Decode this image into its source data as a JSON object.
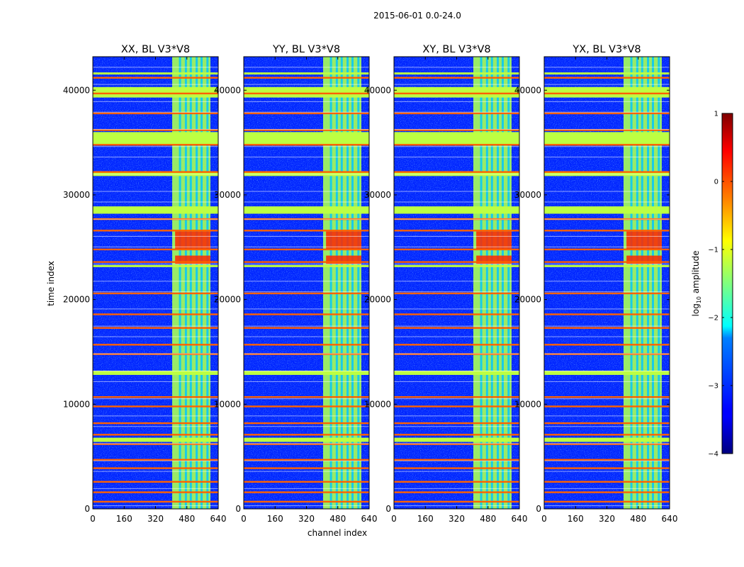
{
  "figure_title": "2015-06-01 0.0-24.0",
  "chart_data": {
    "type": "heatmap",
    "title": "2015-06-01 0.0-24.0",
    "xlabel": "channel index",
    "ylabel": "time index",
    "xlim": [
      0,
      640
    ],
    "ylim": [
      0,
      43200
    ],
    "xticks": [
      0,
      160,
      320,
      480,
      640
    ],
    "xtick_labels": [
      "0",
      "160",
      "320",
      "480",
      "640"
    ],
    "yticks": [
      0,
      10000,
      20000,
      30000,
      40000
    ],
    "ytick_labels": [
      "0",
      "10000",
      "20000",
      "30000",
      "40000"
    ],
    "colorbar": {
      "label_prefix": "log",
      "label_sub": "10",
      "label_suffix": " amplitude",
      "range": [
        -4,
        1
      ],
      "ticks": [
        1,
        0,
        -1,
        -2,
        -3,
        -4
      ],
      "tick_labels": [
        "1",
        "0",
        "−1",
        "−2",
        "−3",
        "−4"
      ]
    },
    "panels": [
      {
        "title": "XX, BL V3*V8",
        "polarization": "XX"
      },
      {
        "title": "YY, BL V3*V8",
        "polarization": "YY"
      },
      {
        "title": "XY, BL V3*V8",
        "polarization": "XY"
      },
      {
        "title": "YX, BL V3*V8",
        "polarization": "YX"
      }
    ],
    "features": {
      "background_log_amplitude": -3.2,
      "band_channels": [
        405,
        600
      ],
      "band_log_amplitude": -1.3,
      "band_gap_channels": [
        445,
        475,
        500,
        530,
        555,
        585
      ],
      "flagged_time_rows_orange": [
        700,
        1600,
        2600,
        3900,
        4700,
        6200,
        7100,
        8200,
        9800,
        10700,
        14800,
        15700,
        17300,
        18600,
        20600,
        23600,
        24800,
        26600,
        27700,
        32200,
        34800,
        36200,
        37800,
        39700,
        41200
      ],
      "flagged_time_blocks_green": [
        [
          6400,
          6800
        ],
        [
          12800,
          13200
        ],
        [
          23100,
          23300
        ],
        [
          28200,
          28900
        ],
        [
          31800,
          32200
        ],
        [
          34800,
          36000
        ],
        [
          39300,
          40300
        ],
        [
          41500,
          41700
        ]
      ],
      "hot_time_blocks_in_band": [
        [
          23400,
          24200
        ],
        [
          24800,
          26500
        ]
      ]
    }
  }
}
